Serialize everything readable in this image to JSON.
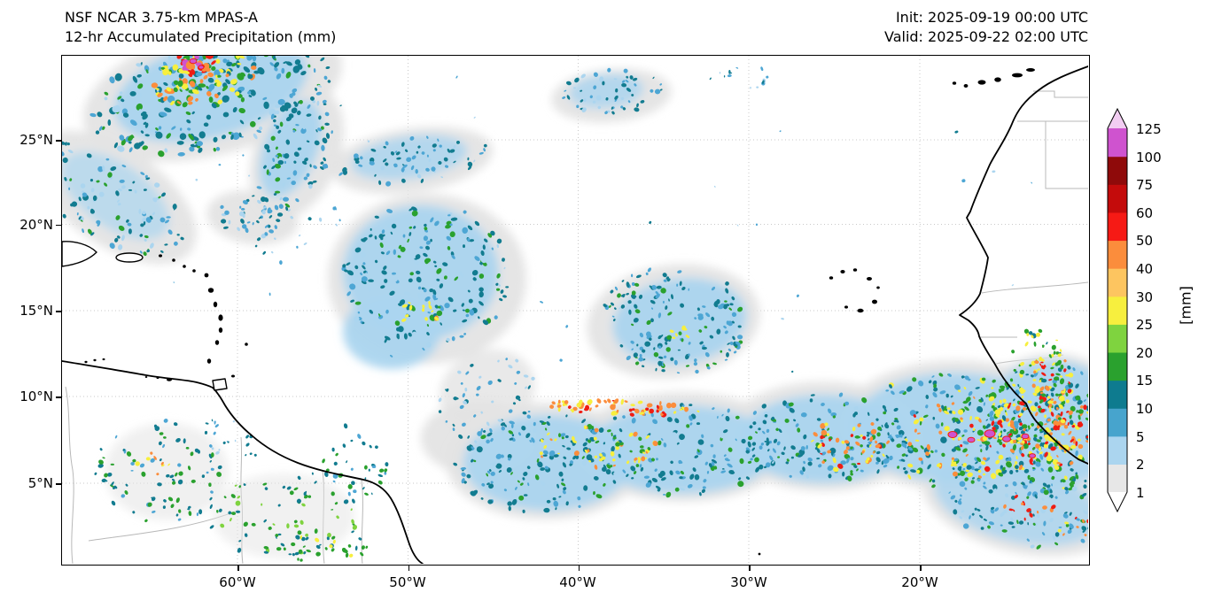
{
  "header": {
    "line1": "NSF NCAR 3.75-km MPAS-A",
    "line2": "12-hr Accumulated Precipitation (mm)",
    "init": "Init: 2025-09-19 00:00 UTC",
    "valid": "Valid: 2025-09-22 02:00 UTC"
  },
  "axes": {
    "lat_ticks": [
      {
        "label": "25°N"
      },
      {
        "label": "20°N"
      },
      {
        "label": "15°N"
      },
      {
        "label": "10°N"
      },
      {
        "label": "5°N"
      }
    ],
    "lon_ticks": [
      {
        "label": "60°W"
      },
      {
        "label": "50°W"
      },
      {
        "label": "40°W"
      },
      {
        "label": "30°W"
      },
      {
        "label": "20°W"
      }
    ]
  },
  "colorbar": {
    "unit": "[mm]",
    "ticks": [
      "125",
      "100",
      "75",
      "60",
      "50",
      "40",
      "30",
      "25",
      "20",
      "15",
      "10",
      "5",
      "2",
      "1"
    ],
    "levels_mm": [
      1,
      2,
      5,
      10,
      15,
      20,
      25,
      30,
      40,
      50,
      60,
      75,
      100,
      125
    ],
    "segment_colors_bottom_to_top": [
      "#e7e7e7",
      "#abd5ef",
      "#47a4cd",
      "#0e7b8f",
      "#2aa12e",
      "#7fd33f",
      "#f7ef3e",
      "#fdc560",
      "#fb8d3c",
      "#f61a15",
      "#c40b0b",
      "#8f0a0a",
      "#cf53cf"
    ],
    "under_color": "#ffffff",
    "over_color": "#f2cdf2"
  }
}
